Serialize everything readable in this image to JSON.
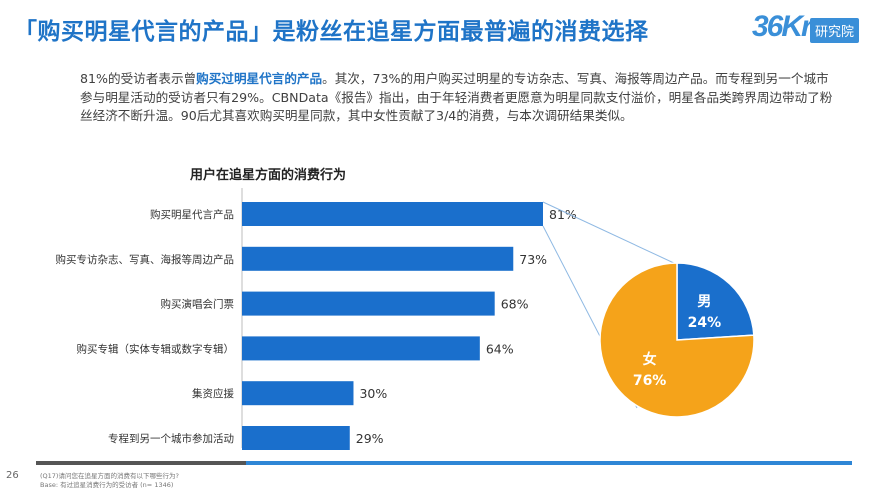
{
  "header": {
    "title": "「购买明星代言的产品」是粉丝在追星方面最普遍的消费选择",
    "logo_mark": "36Kr",
    "logo_tag": "研究院"
  },
  "intro": {
    "before": "81%的受访者表示曾",
    "highlight": "购买过明星代言的产品",
    "after": "。其次，73%的用户购买过明星的专访杂志、写真、海报等周边产品。而专程到另一个城市参与明星活动的受访者只有29%。CBNData《报告》指出，由于年轻消费者更愿意为明星同款支付溢价，明星各品类跨界周边带动了粉丝经济不断升温。90后尤其喜欢购买明星同款，其中女性贡献了3/4的消费，与本次调研结果类似。"
  },
  "colors": {
    "bar": "#1a6fcc",
    "pie_female": "#f5a31a",
    "pie_male": "#1a6fcc",
    "title": "#1f74c7",
    "connector": "#8fb9e3"
  },
  "chart_data": [
    {
      "type": "bar",
      "orientation": "horizontal",
      "title": "用户在追星方面的消费行为",
      "categories": [
        "购买明星代言产品",
        "购买专访杂志、写真、海报等周边产品",
        "购买演唱会门票",
        "购买专辑（实体专辑或数字专辑）",
        "集资应援",
        "专程到另一个城市参加活动"
      ],
      "values": [
        81,
        73,
        68,
        64,
        30,
        29
      ],
      "value_labels": [
        "81%",
        "73%",
        "68%",
        "64%",
        "30%",
        "29%"
      ],
      "xlim": [
        0,
        100
      ],
      "grid": false
    },
    {
      "type": "pie",
      "labels": [
        "男",
        "女"
      ],
      "values": [
        24,
        76
      ],
      "value_labels": [
        "24%",
        "76%"
      ]
    }
  ],
  "footer": {
    "page_number": "26",
    "question": "(Q17)请问您在追星方面的消费有以下哪些行为?",
    "base": "Base: 有过追星消费行为的受访者 (n= 1346)"
  }
}
